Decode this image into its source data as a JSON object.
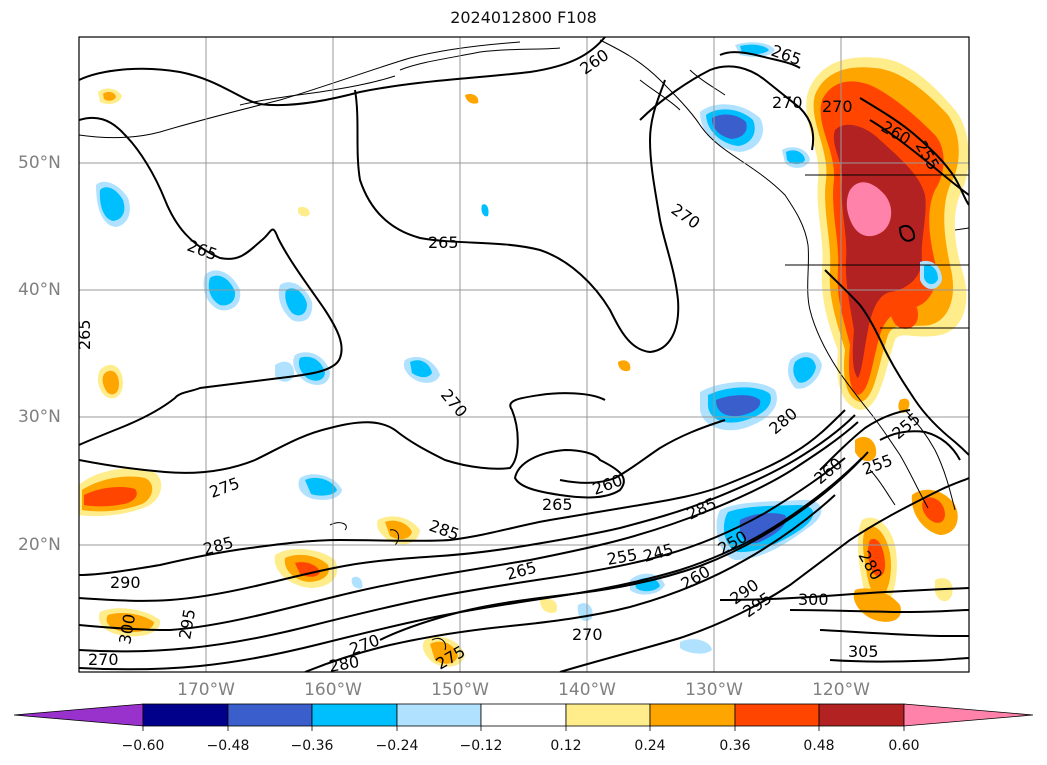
{
  "title": "2024012800 F108",
  "longitude_labels": [
    "170°W",
    "160°W",
    "150°W",
    "140°W",
    "130°W",
    "120°W"
  ],
  "latitude_labels": [
    "50°N",
    "40°N",
    "30°N",
    "20°N"
  ],
  "colorbar": {
    "tick_labels": [
      "−0.60",
      "−0.48",
      "−0.36",
      "−0.24",
      "−0.12",
      "0.12",
      "0.24",
      "0.36",
      "0.48",
      "0.60"
    ],
    "colors": [
      "#9932cc",
      "#00008b",
      "#3a5fcd",
      "#00bfff",
      "#b0e2ff",
      "#ffffff",
      "#ffec8b",
      "#ffa500",
      "#ff4500",
      "#b22222",
      "#ff82ab"
    ]
  },
  "contour_labels": [
    "260",
    "265",
    "270",
    "270",
    "260",
    "255",
    "270",
    "265",
    "265",
    "265",
    "270",
    "280",
    "260",
    "255",
    "255",
    "275",
    "285",
    "290",
    "295",
    "300",
    "285",
    "265",
    "265",
    "260",
    "285",
    "245",
    "255",
    "250",
    "260",
    "290",
    "295",
    "300",
    "280",
    "305",
    "270",
    "270",
    "280",
    "275",
    "270"
  ]
}
